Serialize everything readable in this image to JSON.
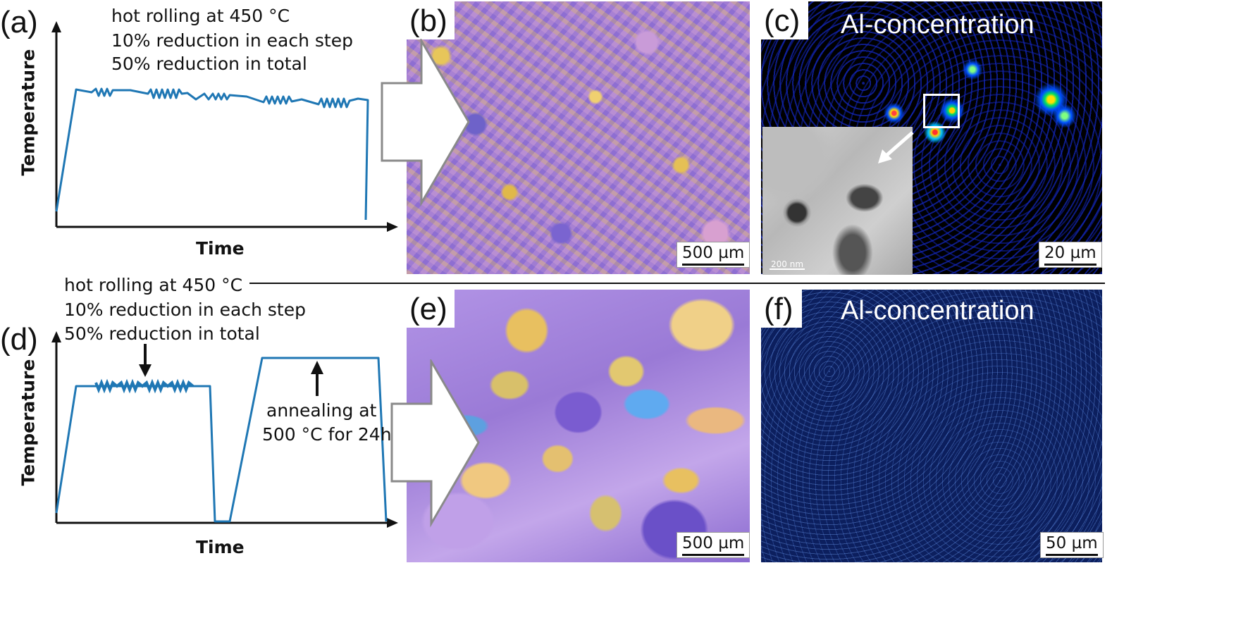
{
  "panels": {
    "a": {
      "label": "(a)",
      "notes": [
        "hot rolling at 450 °C",
        "10% reduction in each step",
        "50% reduction in total"
      ],
      "ylabel": "Temperature",
      "xlabel": "Time"
    },
    "b": {
      "label": "(b)",
      "scale": "500 µm"
    },
    "c": {
      "label": "(c)",
      "title": "Al-concentration",
      "scale": "20 µm",
      "inset_scale": "200 nm"
    },
    "d": {
      "label": "(d)",
      "notes": [
        "hot rolling at 450 °C",
        "10% reduction in each step",
        "50% reduction in total"
      ],
      "annealing": [
        "annealing at",
        "500 °C for 24h"
      ],
      "ylabel": "Temperature",
      "xlabel": "Time"
    },
    "e": {
      "label": "(e)",
      "scale": "500 µm"
    },
    "f": {
      "label": "(f)",
      "title": "Al-concentration",
      "scale": "50 µm"
    }
  },
  "colors": {
    "curve": "#1f77b4",
    "map_dark": "#000000",
    "map_blue": "#0c1f5e",
    "micro_purple": "#9a7ad6"
  }
}
